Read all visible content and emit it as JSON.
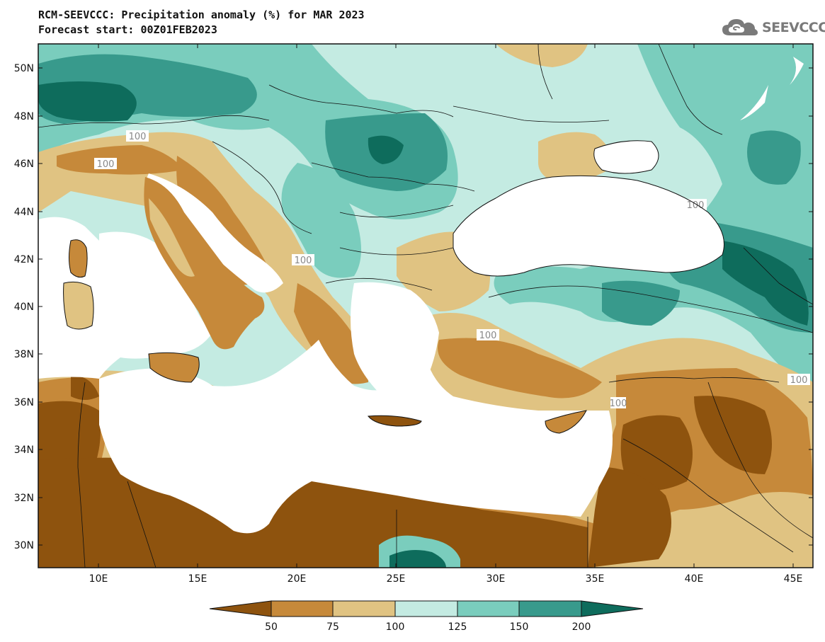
{
  "header": {
    "title_line1": "RCM-SEEVCCC: Precipitation anomaly (%) for MAR 2023",
    "title_line2": "Forecast start: 00Z01FEB2023"
  },
  "logo": {
    "text": "SEEVCCC",
    "icon": "cloud-icon"
  },
  "map": {
    "lat_labels": [
      "50N",
      "48N",
      "46N",
      "44N",
      "42N",
      "40N",
      "38N",
      "36N",
      "34N",
      "32N",
      "30N"
    ],
    "lon_labels": [
      "10E",
      "15E",
      "20E",
      "25E",
      "30E",
      "35E",
      "40E",
      "45E"
    ],
    "contour_labels": [
      "100",
      "100",
      "100",
      "100",
      "100",
      "100",
      "100"
    ],
    "land_color_land_dry": "#8e530e",
    "sea_color": "#ffffff"
  },
  "legend": {
    "tick_labels": [
      "50",
      "75",
      "100",
      "125",
      "150",
      "200"
    ],
    "colors": [
      "#8e530e",
      "#c6893a",
      "#e0c382",
      "#c4ebe2",
      "#7acdbd",
      "#389a8c",
      "#0e6c5c"
    ]
  }
}
